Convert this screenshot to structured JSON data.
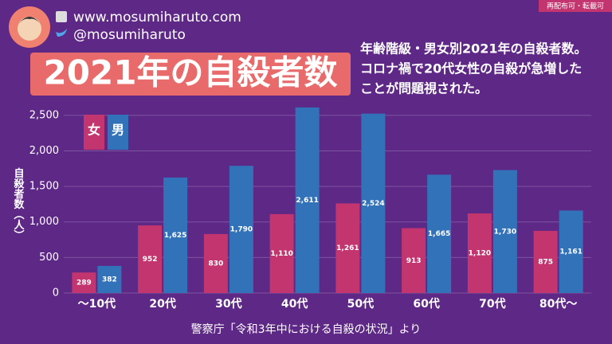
{
  "header": {
    "site": "www.mosumiharuto.com",
    "account": "@mosumiharuto",
    "notice": "再配布可・転載可"
  },
  "chart_data": {
    "type": "bar",
    "title": "2021年の自殺者数",
    "subtitle": [
      "年齢階級・男女別2021年の自殺者数。",
      "コロナ禍で20代女性の自殺が急増した",
      "ことが問題視された。"
    ],
    "y_label": "自殺者数（人）",
    "source": "警察庁「令和3年中における自殺の状況」より",
    "categories": [
      "〜10代",
      "20代",
      "30代",
      "40代",
      "50代",
      "60代",
      "70代",
      "80代〜"
    ],
    "series": [
      {
        "name": "女",
        "color": "#c2356f",
        "values": [
          289,
          952,
          830,
          1110,
          1261,
          913,
          1120,
          875
        ],
        "value_labels": [
          "289",
          "952",
          "830",
          "1,110",
          "1,261",
          "913",
          "1,120",
          "875"
        ]
      },
      {
        "name": "男",
        "color": "#3272b9",
        "values": [
          382,
          1625,
          1790,
          2611,
          2524,
          1665,
          1730,
          1161
        ],
        "value_labels": [
          "382",
          "1,625",
          "1,790",
          "2,611",
          "2,524",
          "1,665",
          "1,730",
          "1,161"
        ]
      }
    ],
    "ylim": [
      0,
      2700
    ],
    "yticks": [
      0,
      500,
      {
        "value": 1000,
        "label": "1,000"
      },
      {
        "value": 1500,
        "label": "1,500"
      },
      {
        "value": 2000,
        "label": "2,000"
      },
      {
        "value": 2500,
        "label": "2,500"
      }
    ],
    "grid": true
  }
}
